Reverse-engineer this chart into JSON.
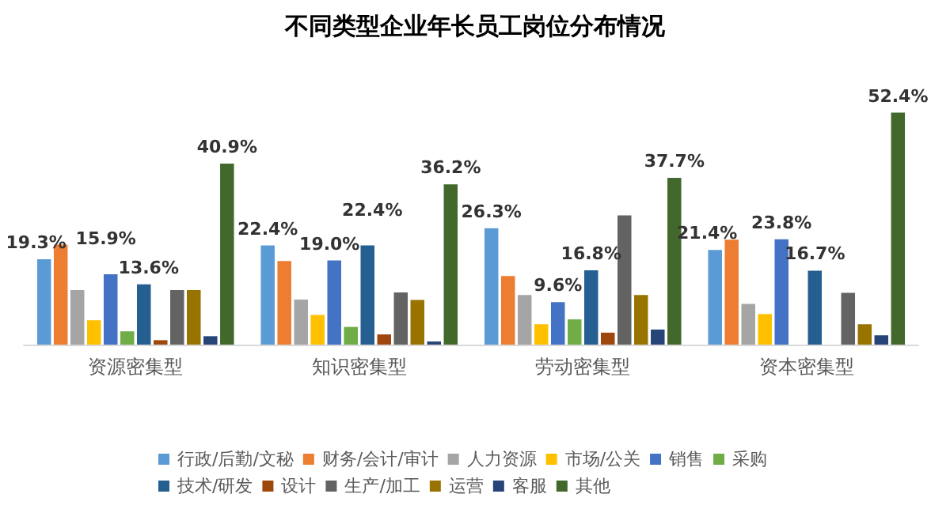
{
  "chart_data": {
    "type": "bar",
    "title": "不同类型企业年长员工岗位分布情况",
    "categories": [
      "资源密集型",
      "知识密集型",
      "劳动密集型",
      "资本密集型"
    ],
    "legend": "bottom",
    "series": [
      {
        "name": "行政/后勤/文秘",
        "color": "#5b9bd5",
        "values": [
          19.3,
          22.4,
          26.3,
          21.4
        ],
        "value_labels": [
          "19.3%",
          "22.4%",
          "26.3%",
          "21.4%"
        ]
      },
      {
        "name": "财务/会计/审计",
        "color": "#ed7d31",
        "values": [
          22.6,
          18.9,
          15.5,
          23.7
        ]
      },
      {
        "name": "人力资源",
        "color": "#a5a5a5",
        "values": [
          12.3,
          10.2,
          11.2,
          9.2
        ]
      },
      {
        "name": "市场/公关",
        "color": "#ffc000",
        "values": [
          5.5,
          6.7,
          4.6,
          6.9
        ]
      },
      {
        "name": "销售",
        "color": "#4472c4",
        "values": [
          15.9,
          19.0,
          9.6,
          23.8
        ],
        "value_labels": [
          "15.9%",
          "19.0%",
          "9.6%",
          "23.8%"
        ]
      },
      {
        "name": "采购",
        "color": "#70ad47",
        "values": [
          3.0,
          4.0,
          5.7,
          0
        ]
      },
      {
        "name": "技术/研发",
        "color": "#255e91",
        "values": [
          13.6,
          22.4,
          16.8,
          16.7
        ],
        "value_labels": [
          "13.6%",
          "22.4%",
          "16.8%",
          "16.7%"
        ]
      },
      {
        "name": "设计",
        "color": "#9e480e",
        "values": [
          1.0,
          2.3,
          2.7,
          0
        ]
      },
      {
        "name": "生产/加工",
        "color": "#636363",
        "values": [
          12.3,
          11.8,
          29.2,
          11.7
        ]
      },
      {
        "name": "运营",
        "color": "#997300",
        "values": [
          12.3,
          10.1,
          11.2,
          4.6
        ]
      },
      {
        "name": "客服",
        "color": "#264478",
        "values": [
          1.9,
          0.7,
          3.4,
          2.1
        ]
      },
      {
        "name": "其他",
        "color": "#43682b",
        "values": [
          40.9,
          36.2,
          37.7,
          52.4
        ],
        "value_labels": [
          "40.9%",
          "36.2%",
          "37.7%",
          "52.4%"
        ]
      }
    ]
  }
}
